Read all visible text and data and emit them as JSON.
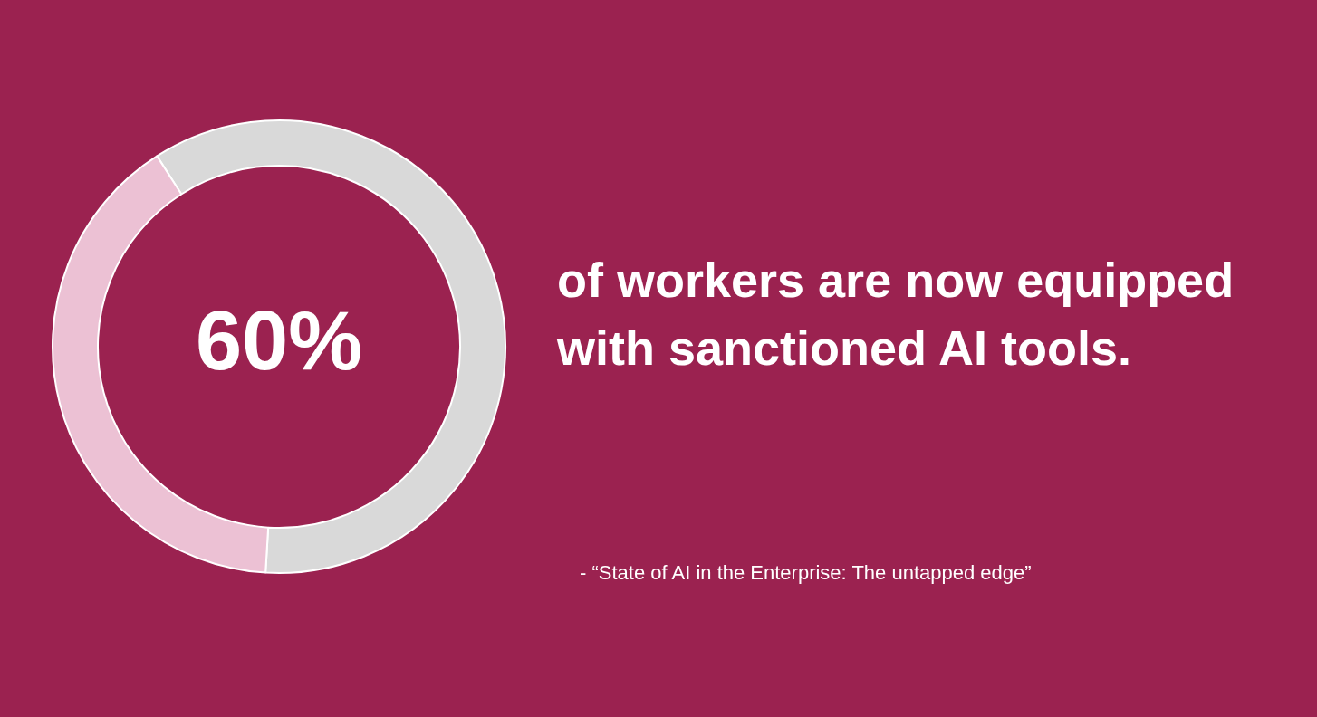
{
  "chart_data": {
    "type": "donut",
    "title": "of workers are now equipped with sanctioned AI tools.",
    "categories": [
      null,
      null
    ],
    "values": [
      60,
      40
    ],
    "colors": [
      "#d9d9d9",
      "#ecc1d4"
    ],
    "value_labels": [
      "60%",
      null
    ],
    "legend": false,
    "annotations": [
      "- “State of AI in the Enterprise: The untapped edge”"
    ]
  }
}
